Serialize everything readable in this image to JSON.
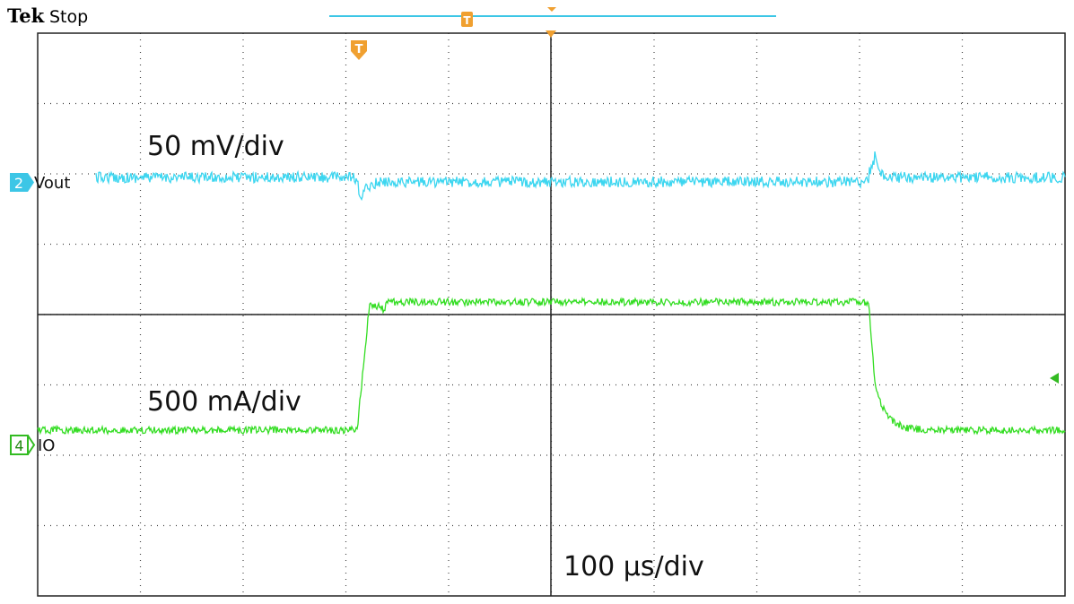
{
  "header": {
    "brand": "Tek",
    "status": "Stop"
  },
  "channels": [
    {
      "number": "2",
      "label": "Vout",
      "scale": "50 mV/div"
    },
    {
      "number": "4",
      "label": "IO",
      "scale": "500 mA/div"
    }
  ],
  "timebase": "100 µs/div",
  "trigger": {
    "marker": "T"
  }
}
